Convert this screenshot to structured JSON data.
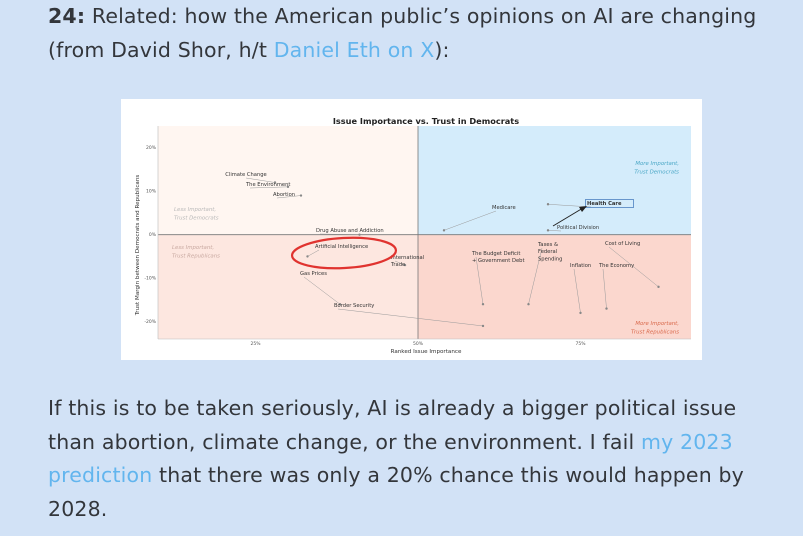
{
  "post": {
    "item_number": "24:",
    "intro_text": " Related: how the American public’s opinions on AI are changing (from David Shor, h/t ",
    "intro_link": "Daniel Eth on X",
    "intro_end": "):",
    "body_text_1": "If this is to be taken seriously, AI is already a bigger political issue than abortion, climate change, or the environment. I fail ",
    "body_link": "my 2023 prediction",
    "body_text_2": " that there was only a 20% chance this would happen by 2028."
  },
  "colors": {
    "background": "#d2e2f6",
    "link": "#62b5ee",
    "text": "#33363b",
    "dem_fill": "#d4ecfb",
    "rep_fill": "#fbd7ce",
    "dem_label": "#4aa7c6",
    "rep_label": "#d9694c",
    "highlight_circle": "#e0332f"
  },
  "chart_data": {
    "type": "scatter",
    "title": "Issue Importance vs. Trust in Democrats",
    "xlabel": "Ranked Issue Importance",
    "ylabel": "Trust Margin between Democrats and Republicans",
    "x_ticks": [
      "25%",
      "50%",
      "75%"
    ],
    "y_ticks": [
      "20%",
      "10%",
      "0%",
      "-10%",
      "-20%"
    ],
    "xlim": [
      10,
      92
    ],
    "ylim": [
      -24,
      25
    ],
    "quadrant_labels": {
      "top_left": "Less Important,\nTrust Democrats",
      "bottom_left": "Less Important,\nTrust Republicans",
      "top_right": "More Important,\nTrust Democrats",
      "bottom_right": "More Important,\nTrust Republicans"
    },
    "points": [
      {
        "label": "Climate Change",
        "x": 28,
        "y": 12
      },
      {
        "label": "The Environment",
        "x": 30,
        "y": 11
      },
      {
        "label": "Abortion",
        "x": 32,
        "y": 9
      },
      {
        "label": "Drug Abuse and Addiction",
        "x": 41,
        "y": 0
      },
      {
        "label": "Artificial Intelligence",
        "x": 33,
        "y": -5
      },
      {
        "label": "International Trade",
        "x": 48,
        "y": -7
      },
      {
        "label": "Gas Prices",
        "x": 38,
        "y": -16
      },
      {
        "label": "Border Security",
        "x": 60,
        "y": -21
      },
      {
        "label": "Medicare",
        "x": 54,
        "y": 1
      },
      {
        "label": "Health Care",
        "x": 70,
        "y": 7
      },
      {
        "label": "Political Division",
        "x": 70,
        "y": 1
      },
      {
        "label": "The Budget Deficit + Government Debt",
        "x": 60,
        "y": -16
      },
      {
        "label": "Taxes & Federal Spending",
        "x": 67,
        "y": -16
      },
      {
        "label": "Inflation",
        "x": 75,
        "y": -18
      },
      {
        "label": "The Economy",
        "x": 79,
        "y": -17
      },
      {
        "label": "Cost of Living",
        "x": 87,
        "y": -12
      }
    ]
  }
}
